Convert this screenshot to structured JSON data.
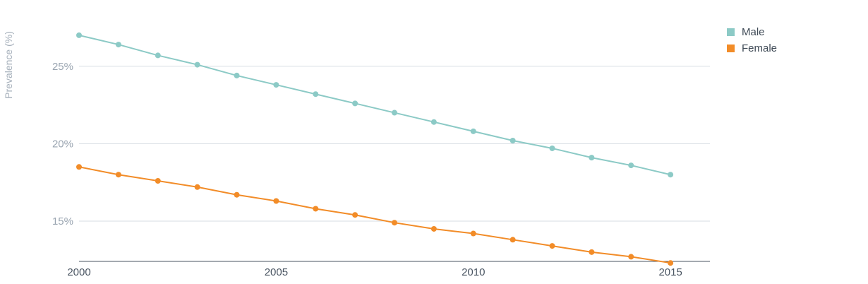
{
  "chart_data": {
    "type": "line",
    "title": "",
    "xlabel": "",
    "ylabel": "Prevalence (%)",
    "x": [
      2000,
      2001,
      2002,
      2003,
      2004,
      2005,
      2006,
      2007,
      2008,
      2009,
      2010,
      2011,
      2012,
      2013,
      2014,
      2015
    ],
    "xlim": [
      2000,
      2016
    ],
    "ylim": [
      12.4,
      28.0
    ],
    "x_ticks": [
      2000,
      2005,
      2010,
      2015
    ],
    "x_tick_labels": [
      "2000",
      "2005",
      "2010",
      "2015"
    ],
    "y_ticks": [
      15,
      20,
      25
    ],
    "y_tick_labels": [
      "15%",
      "20%",
      "25%"
    ],
    "grid": true,
    "legend": "top-right",
    "series": [
      {
        "name": "Male",
        "color": "#8ccac6",
        "values": [
          27.0,
          26.4,
          25.7,
          25.1,
          24.4,
          23.8,
          23.2,
          22.6,
          22.0,
          21.4,
          20.8,
          20.2,
          19.7,
          19.1,
          18.6,
          18.0
        ]
      },
      {
        "name": "Female",
        "color": "#f28c28",
        "values": [
          18.5,
          18.0,
          17.6,
          17.2,
          16.7,
          16.3,
          15.8,
          15.4,
          14.9,
          14.5,
          14.2,
          13.8,
          13.4,
          13.0,
          12.7,
          12.3
        ]
      }
    ]
  }
}
